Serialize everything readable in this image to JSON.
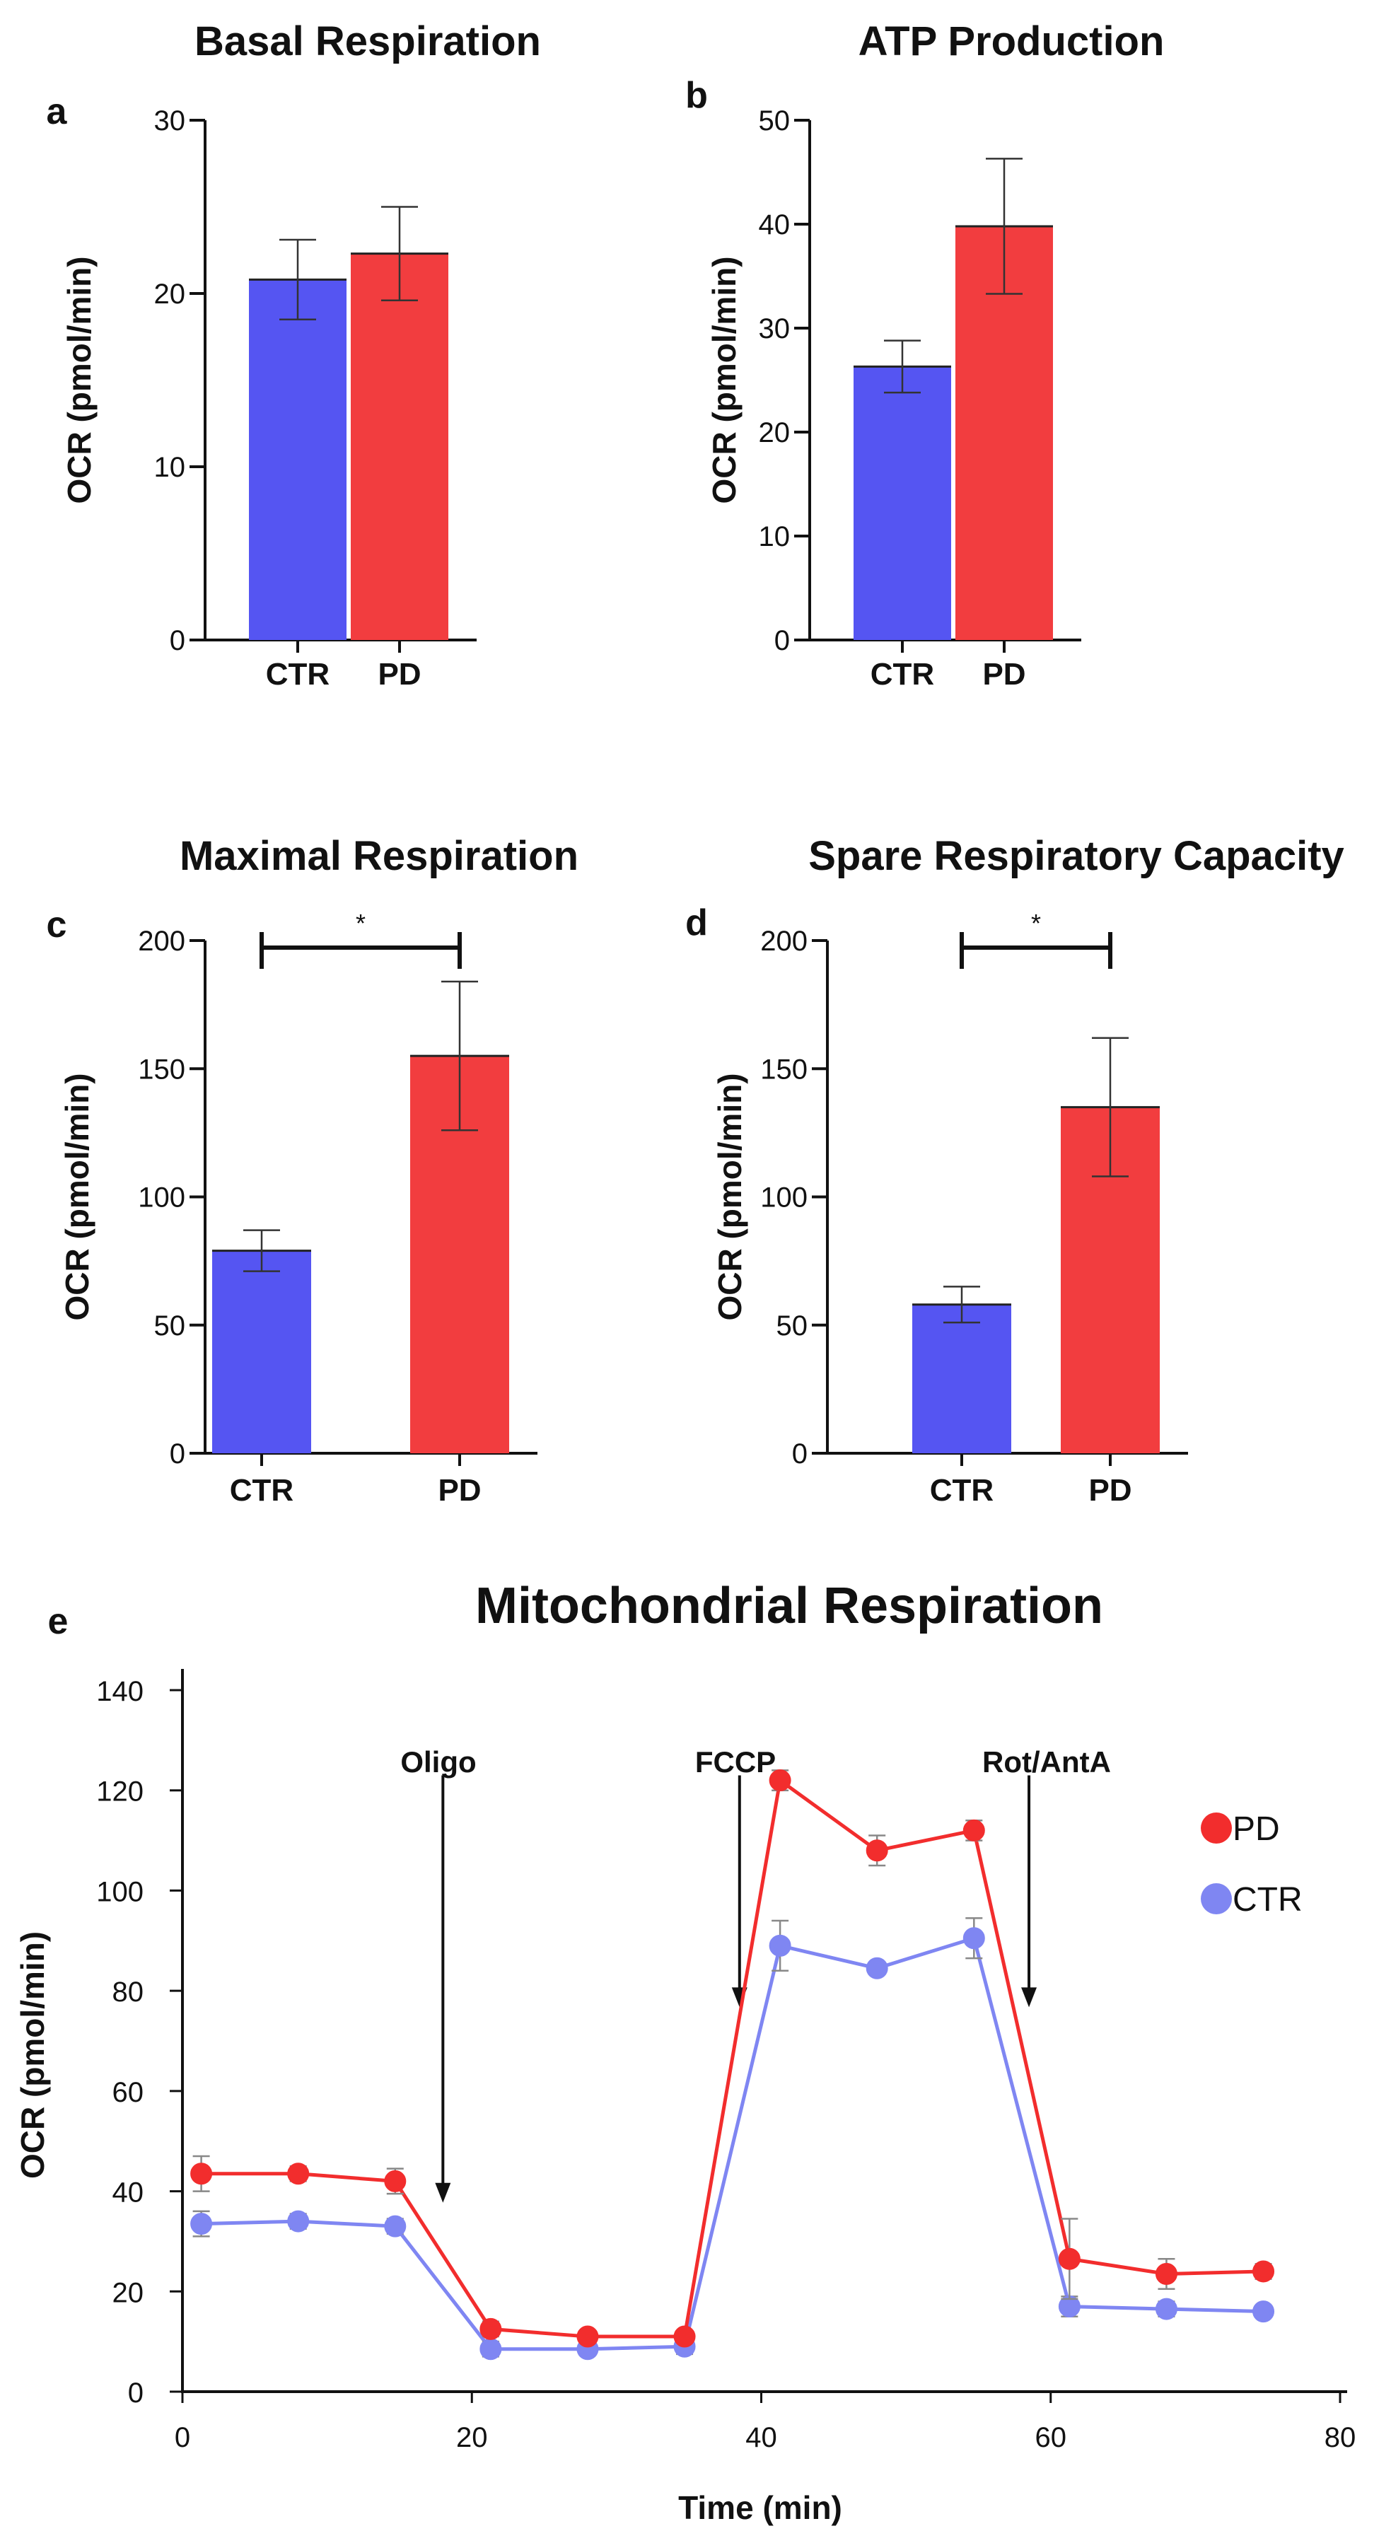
{
  "chart_data": [
    {
      "panel": "a",
      "type": "bar",
      "title": "Basal Respiration",
      "ylabel": "OCR (pmol/min)",
      "categories": [
        "CTR",
        "PD"
      ],
      "values": [
        20.8,
        22.3
      ],
      "errors": [
        2.3,
        2.7
      ],
      "colors": [
        "#5555f2",
        "#f23d3f"
      ],
      "ylim": [
        0,
        30
      ],
      "yticks": [
        0,
        10,
        20,
        30
      ],
      "significance": null
    },
    {
      "panel": "b",
      "type": "bar",
      "title": "ATP Production",
      "ylabel": "OCR (pmol/min)",
      "categories": [
        "CTR",
        "PD"
      ],
      "values": [
        26.3,
        39.8
      ],
      "errors": [
        2.5,
        6.5
      ],
      "colors": [
        "#5555f2",
        "#f23d3f"
      ],
      "ylim": [
        0,
        50
      ],
      "yticks": [
        0,
        10,
        20,
        30,
        40,
        50
      ],
      "significance": null
    },
    {
      "panel": "c",
      "type": "bar",
      "title": "Maximal Respiration",
      "ylabel": "OCR (pmol/min)",
      "categories": [
        "CTR",
        "PD"
      ],
      "values": [
        79,
        155
      ],
      "errors": [
        8,
        29
      ],
      "colors": [
        "#5555f2",
        "#f23d3f"
      ],
      "ylim": [
        0,
        200
      ],
      "yticks": [
        0,
        50,
        100,
        150,
        200
      ],
      "significance": "*"
    },
    {
      "panel": "d",
      "type": "bar",
      "title": "Spare Respiratory Capacity",
      "ylabel": "OCR (pmol/min)",
      "categories": [
        "CTR",
        "PD"
      ],
      "values": [
        58,
        135
      ],
      "errors": [
        7,
        27
      ],
      "colors": [
        "#5555f2",
        "#f23d3f"
      ],
      "ylim": [
        0,
        200
      ],
      "yticks": [
        0,
        50,
        100,
        150,
        200
      ],
      "significance": "*"
    },
    {
      "panel": "e",
      "type": "line",
      "title": "Mitochondrial Respiration",
      "xlabel": "Time (min)",
      "ylabel": "OCR (pmol/min)",
      "xlim": [
        0,
        80
      ],
      "ylim": [
        0,
        140
      ],
      "xticks": [
        0,
        20,
        40,
        60,
        80
      ],
      "yticks": [
        0,
        20,
        40,
        60,
        80,
        100,
        120,
        140
      ],
      "x": [
        1.3,
        8,
        14.7,
        21.3,
        28,
        34.7,
        41.3,
        48,
        54.7,
        61.3,
        68,
        74.7
      ],
      "series": [
        {
          "name": "PD",
          "color": "#f22d2d",
          "values": [
            43.5,
            43.5,
            42,
            12.5,
            11,
            11,
            122,
            108,
            112,
            26.5,
            23.5,
            24
          ],
          "errors": [
            3.5,
            1.5,
            2.5,
            1.5,
            1,
            1,
            2,
            3,
            2,
            8,
            3,
            1.5
          ]
        },
        {
          "name": "CTR",
          "color": "#7f86f2",
          "values": [
            33.5,
            34,
            33,
            8.5,
            8.5,
            9,
            89,
            84.5,
            90.5,
            17,
            16.5,
            16
          ],
          "errors": [
            2.5,
            1.5,
            1.5,
            1.5,
            1,
            1.5,
            5,
            1,
            4,
            2,
            1.5,
            1
          ]
        }
      ],
      "annotations": [
        {
          "label": "Oligo",
          "x": 18,
          "arrow_from": 123,
          "arrow_to": 38
        },
        {
          "label": "FCCP",
          "x": 38.5,
          "arrow_from": 123,
          "arrow_to": 77
        },
        {
          "label": "Rot/AntA",
          "x": 58.5,
          "arrow_from": 123,
          "arrow_to": 77
        }
      ]
    }
  ]
}
